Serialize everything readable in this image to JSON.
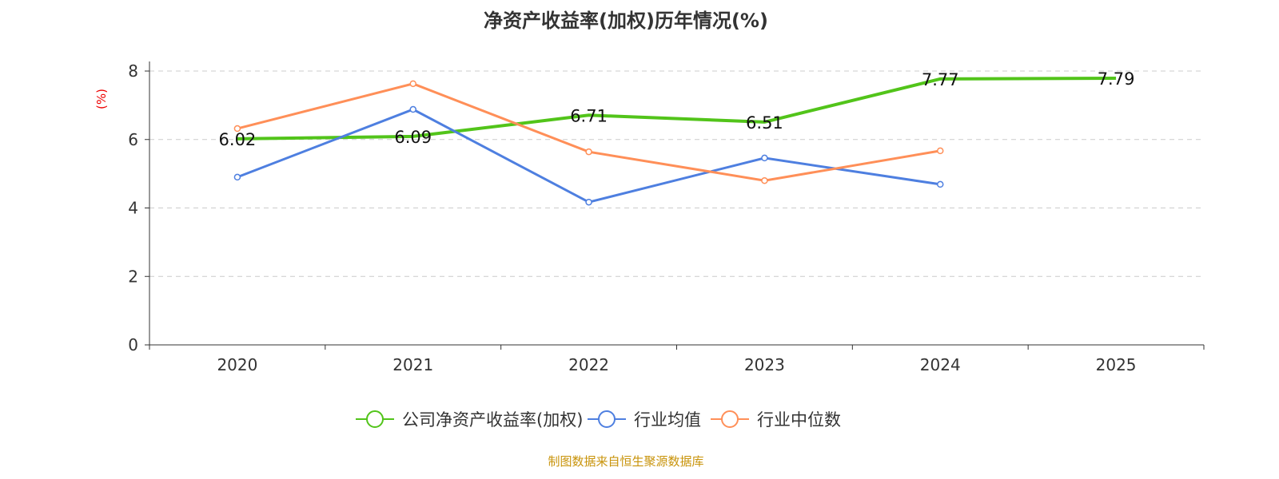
{
  "chart_data": {
    "type": "line",
    "title": "净资产收益率(加权)历年情况(%)",
    "ylabel": "(%)",
    "categories": [
      "2020",
      "2021",
      "2022",
      "2023",
      "2024",
      "2025"
    ],
    "ylim": [
      0,
      8
    ],
    "yticks": [
      0,
      2,
      4,
      6,
      8
    ],
    "grid": true,
    "legend_position": "bottom",
    "series": [
      {
        "name": "公司净资产收益率(加权)",
        "color": "#52c41a",
        "values": [
          6.02,
          6.09,
          6.71,
          6.51,
          7.77,
          7.79
        ],
        "labels": [
          "6.02",
          "6.09",
          "6.71",
          "6.51",
          "7.77",
          "7.79"
        ]
      },
      {
        "name": "行业均值",
        "color": "#4e7fe0",
        "values": [
          4.9,
          6.88,
          4.17,
          5.46,
          4.69,
          null
        ]
      },
      {
        "name": "行业中位数",
        "color": "#ff8f58",
        "values": [
          6.32,
          7.63,
          5.64,
          4.8,
          5.67,
          null
        ]
      }
    ]
  },
  "source": "制图数据来自恒生聚源数据库"
}
